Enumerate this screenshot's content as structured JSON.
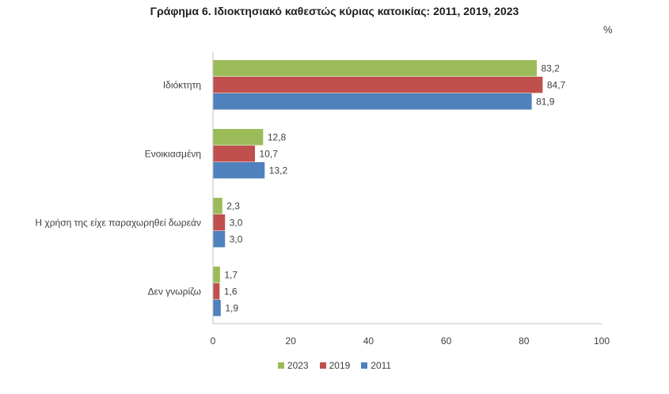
{
  "chart_data": {
    "type": "bar",
    "orientation": "horizontal",
    "title": "Γράφημα 6. Ιδιοκτησιακό καθεστώς κύριας κατοικίας: 2011, 2019, 2023",
    "unit": "%",
    "categories": [
      "Ιδιόκτητη",
      "Ενοικιασμένη",
      "Η χρήση της είχε παραχωρηθεί δωρεάν",
      "Δεν γνωρίζω"
    ],
    "series": [
      {
        "name": "2023",
        "color": "#9bbb59",
        "values": [
          83.2,
          12.8,
          2.3,
          1.7
        ],
        "labels": [
          "83,2",
          "12,8",
          "2,3",
          "1,7"
        ]
      },
      {
        "name": "2019",
        "color": "#c0504d",
        "values": [
          84.7,
          10.7,
          3.0,
          1.6
        ],
        "labels": [
          "84,7",
          "10,7",
          "3,0",
          "1,6"
        ]
      },
      {
        "name": "2011",
        "color": "#4f81bd",
        "values": [
          81.9,
          13.2,
          3.0,
          1.9
        ],
        "labels": [
          "81,9",
          "13,2",
          "3,0",
          "1,9"
        ]
      }
    ],
    "xlim": [
      0,
      100
    ],
    "xticks": [
      0,
      20,
      40,
      60,
      80,
      100
    ],
    "grid": false,
    "legend": "bottom-center"
  }
}
